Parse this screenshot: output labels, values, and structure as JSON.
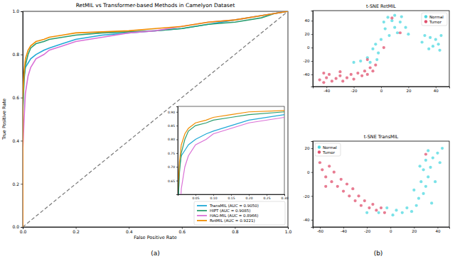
{
  "chart_data": [
    {
      "type": "line",
      "title": "RetMIL vs Transformer-based Methods in Camelyon Dataset",
      "x_label": "False Positive Rate",
      "y_label": "True Positive Rate",
      "xlim": [
        0,
        1
      ],
      "ylim": [
        0,
        1
      ],
      "xticks": [
        {
          "value": 0,
          "label": "0.0"
        },
        0.2,
        0.4,
        0.6,
        0.8,
        {
          "value": 1,
          "label": "1.0"
        }
      ],
      "yticks": [
        {
          "value": 0,
          "label": "0.0"
        },
        0.2,
        0.4,
        0.6,
        0.8,
        {
          "value": 1,
          "label": "1.0"
        }
      ],
      "legend": "lower right",
      "caption": "(a)",
      "series": [
        {
          "name": "TransMIL (AUC = 0.9050)",
          "color": "#1fa9d6",
          "x": [
            0,
            0,
            0.005,
            0.01,
            0.02,
            0.03,
            0.05,
            0.08,
            0.1,
            0.15,
            0.2,
            0.3,
            0.4,
            0.5,
            0.6,
            0.7,
            0.8,
            0.9,
            0.95,
            1.0
          ],
          "y": [
            0,
            0.5,
            0.7,
            0.74,
            0.76,
            0.78,
            0.8,
            0.82,
            0.83,
            0.85,
            0.87,
            0.89,
            0.9,
            0.91,
            0.92,
            0.94,
            0.96,
            0.98,
            0.99,
            1.0
          ]
        },
        {
          "name": "HIPT (AUC = 0.9085)",
          "color": "#2a9d6f",
          "x": [
            0,
            0,
            0.005,
            0.01,
            0.02,
            0.03,
            0.05,
            0.08,
            0.1,
            0.15,
            0.2,
            0.3,
            0.4,
            0.5,
            0.6,
            0.7,
            0.8,
            0.9,
            0.95,
            1.0
          ],
          "y": [
            0,
            0.55,
            0.68,
            0.75,
            0.8,
            0.83,
            0.85,
            0.86,
            0.87,
            0.88,
            0.89,
            0.9,
            0.905,
            0.91,
            0.92,
            0.94,
            0.95,
            0.97,
            0.99,
            1.0
          ]
        },
        {
          "name": "HAG-MIL (AUC = 0.8966)",
          "color": "#da70d6",
          "x": [
            0,
            0,
            0.005,
            0.01,
            0.02,
            0.03,
            0.05,
            0.08,
            0.1,
            0.15,
            0.2,
            0.3,
            0.4,
            0.5,
            0.6,
            0.7,
            0.8,
            0.9,
            0.95,
            1.0
          ],
          "y": [
            0,
            0.35,
            0.5,
            0.62,
            0.7,
            0.74,
            0.78,
            0.8,
            0.82,
            0.84,
            0.86,
            0.88,
            0.9,
            0.91,
            0.93,
            0.95,
            0.96,
            0.98,
            0.99,
            1.0
          ]
        },
        {
          "name": "RetMIL (AUC = 0.9221)",
          "color": "#f08c00",
          "x": [
            0,
            0,
            0.005,
            0.01,
            0.02,
            0.03,
            0.05,
            0.08,
            0.1,
            0.15,
            0.2,
            0.3,
            0.4,
            0.5,
            0.6,
            0.7,
            0.8,
            0.9,
            0.95,
            1.0
          ],
          "y": [
            0,
            0.6,
            0.72,
            0.78,
            0.82,
            0.84,
            0.86,
            0.87,
            0.88,
            0.89,
            0.9,
            0.905,
            0.91,
            0.92,
            0.93,
            0.95,
            0.96,
            0.98,
            0.99,
            1.0
          ]
        }
      ]
    },
    {
      "type": "line",
      "xlim": [
        0,
        0.3
      ],
      "ylim": [
        0.6,
        0.92
      ],
      "xticks": [
        0.05,
        {
          "value": 0.1,
          "label": "0.10"
        },
        0.15,
        {
          "value": 0.2,
          "label": "0.20"
        },
        0.25,
        {
          "value": 0.3,
          "label": "0.30"
        }
      ],
      "yticks": [
        0.65,
        {
          "value": 0.7,
          "label": "0.70"
        },
        0.75,
        {
          "value": 0.8,
          "label": "0.80"
        },
        0.85,
        {
          "value": 0.9,
          "label": "0.90"
        }
      ]
    },
    {
      "type": "scatter",
      "title": "t-SNE RetMIL",
      "xlim": [
        -50,
        50
      ],
      "ylim": [
        -58,
        55
      ],
      "xticks": [
        -40,
        -20,
        0,
        20,
        40
      ],
      "yticks": [
        -40,
        -20,
        0,
        20,
        40
      ],
      "legend": "upper right",
      "series": [
        {
          "name": "Normal",
          "color": "#4dd8e0",
          "marker": "circle",
          "x": [
            5,
            10,
            15,
            2,
            8,
            14,
            18,
            10,
            3,
            12,
            20,
            6,
            0,
            -4,
            -6,
            -2,
            -10,
            -15,
            -20,
            -8,
            -3,
            32,
            36,
            40,
            42,
            38,
            44,
            30,
            35,
            43
          ],
          "y": [
            45,
            48,
            46,
            38,
            40,
            38,
            30,
            30,
            28,
            22,
            20,
            18,
            12,
            5,
            -2,
            -8,
            -15,
            -20,
            -22,
            -22,
            -18,
            18,
            15,
            12,
            5,
            2,
            18,
            8,
            -2,
            -4
          ]
        },
        {
          "name": "Tumor",
          "color": "#e0506e",
          "marker": "circle",
          "x": [
            -45,
            -42,
            -40,
            -36,
            -33,
            -30,
            -28,
            -25,
            -22,
            -20,
            -17,
            -14,
            -12,
            -10,
            -8,
            -6,
            -4,
            -42,
            -38,
            -30,
            8,
            14,
            2,
            -10
          ],
          "y": [
            -48,
            -52,
            -45,
            -50,
            -46,
            -42,
            -50,
            -45,
            -40,
            -47,
            -38,
            -42,
            -35,
            -40,
            -30,
            -35,
            -26,
            -38,
            -40,
            -36,
            44,
            22,
            0,
            -18
          ]
        }
      ]
    },
    {
      "type": "scatter",
      "title": "t-SNE TransMIL",
      "xlim": [
        -66,
        50
      ],
      "ylim": [
        -46,
        26
      ],
      "xticks": [
        -60,
        -40,
        -20,
        0,
        20,
        40
      ],
      "yticks": [
        -40,
        -20,
        0,
        20
      ],
      "legend": "upper left",
      "caption": "(b)",
      "series": [
        {
          "name": "Normal",
          "color": "#4dd8e0",
          "marker": "circle",
          "x": [
            -10,
            -3,
            2,
            5,
            10,
            14,
            18,
            22,
            24,
            28,
            30,
            26,
            32,
            28,
            34,
            30,
            36,
            32,
            40,
            42,
            44,
            38,
            25,
            20,
            35,
            -20
          ],
          "y": [
            -34,
            -30,
            -36,
            -32,
            -34,
            -30,
            -33,
            -28,
            -22,
            -18,
            -12,
            -8,
            -4,
            2,
            4,
            10,
            12,
            18,
            16,
            8,
            20,
            -8,
            5,
            -15,
            -26,
            -34
          ]
        },
        {
          "name": "Tumor",
          "color": "#e0506e",
          "marker": "circle",
          "x": [
            -60,
            -58,
            -55,
            -52,
            -50,
            -48,
            -45,
            -42,
            -40,
            -37,
            -35,
            -32,
            -30,
            -27,
            -25,
            -22,
            -18,
            -15,
            -12,
            -8,
            -5,
            -55,
            30
          ],
          "y": [
            8,
            2,
            -4,
            5,
            -8,
            0,
            -12,
            -6,
            -16,
            -10,
            -20,
            -14,
            -24,
            -20,
            -28,
            -24,
            -30,
            -27,
            -32,
            -30,
            -34,
            -12,
            15
          ]
        }
      ]
    }
  ]
}
